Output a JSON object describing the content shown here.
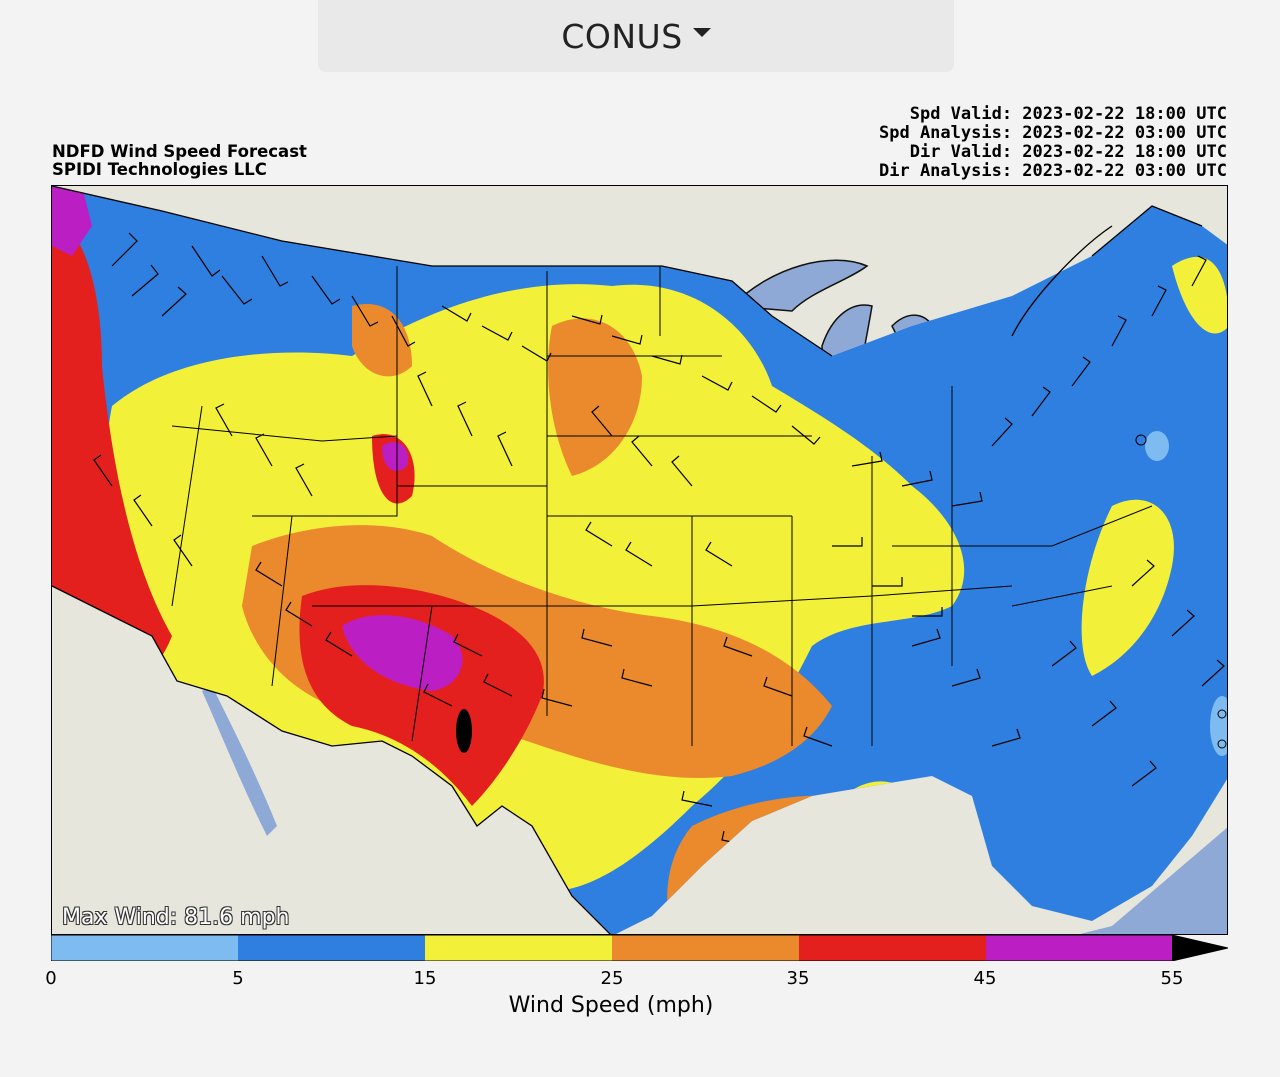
{
  "region_selector": {
    "label": "CONUS",
    "icon": "caret-down-icon"
  },
  "header": {
    "title": "NDFD Wind Speed Forecast",
    "source": "SPIDI Technologies LLC",
    "spd_valid": "Spd Valid: 2023-02-22 18:00 UTC",
    "spd_analysis": "Spd Analysis: 2023-02-22 03:00 UTC",
    "dir_valid": "Dir Valid: 2023-02-22 18:00 UTC",
    "dir_analysis": "Dir Analysis: 2023-02-22 03:00 UTC"
  },
  "map": {
    "max_wind": "Max Wind: 81.6 mph",
    "land_color": "#e6e6dc",
    "water_color": "#8fa9d6"
  },
  "colorbar": {
    "label": "Wind Speed (mph)",
    "ticks": [
      "0",
      "5",
      "15",
      "25",
      "35",
      "45",
      "55"
    ],
    "bins": [
      {
        "min": 0,
        "max": 5,
        "color": "#7dbbf0"
      },
      {
        "min": 5,
        "max": 15,
        "color": "#2f7fe0"
      },
      {
        "min": 15,
        "max": 25,
        "color": "#f3f03a"
      },
      {
        "min": 25,
        "max": 35,
        "color": "#ea8a2c"
      },
      {
        "min": 35,
        "max": 45,
        "color": "#e4201f"
      },
      {
        "min": 45,
        "max": 55,
        "color": "#bb1fc4"
      }
    ],
    "overflow_color": "#000000"
  }
}
